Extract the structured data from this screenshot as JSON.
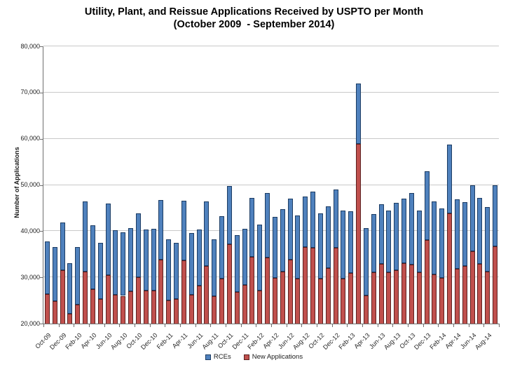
{
  "chart_data": {
    "type": "bar",
    "stacked": true,
    "title": "Utility, Plant, and Reissue Applications Received by USPTO per Month",
    "subtitle": "(October 2009  - September 2014)",
    "ylabel": "Number of Applications",
    "ylim": [
      20000,
      80000
    ],
    "ytick_step": 10000,
    "ytick_labels": [
      "20,000",
      "30,000",
      "40,000",
      "50,000",
      "60,000",
      "70,000",
      "80,000"
    ],
    "grid": true,
    "legend_position": "bottom",
    "x_label_every": 2,
    "categories": [
      "Oct-09",
      "Nov-09",
      "Dec-09",
      "Jan-10",
      "Feb-10",
      "Mar-10",
      "Apr-10",
      "May-10",
      "Jun-10",
      "Jul-10",
      "Aug-10",
      "Sep-10",
      "Oct-10",
      "Nov-10",
      "Dec-10",
      "Jan-11",
      "Feb-11",
      "Mar-11",
      "Apr-11",
      "May-11",
      "Jun-11",
      "Jul-11",
      "Aug-11",
      "Sep-11",
      "Oct-11",
      "Nov-11",
      "Dec-11",
      "Jan-12",
      "Feb-12",
      "Mar-12",
      "Apr-12",
      "May-12",
      "Jun-12",
      "Jul-12",
      "Aug-12",
      "Sep-12",
      "Oct-12",
      "Nov-12",
      "Dec-12",
      "Jan-13",
      "Feb-13",
      "Mar-13",
      "Apr-13",
      "May-13",
      "Jun-13",
      "Jul-13",
      "Aug-13",
      "Sep-13",
      "Oct-13",
      "Nov-13",
      "Dec-13",
      "Jan-14",
      "Feb-14",
      "Mar-14",
      "Apr-14",
      "May-14",
      "Jun-14",
      "Jul-14",
      "Aug-14",
      "Sep-14"
    ],
    "stack_bottom_to_top": [
      "New Applications",
      "RCEs"
    ],
    "series": [
      {
        "name": "RCEs",
        "color": "#4F81BD",
        "border_color": "#1c3c63",
        "values": [
          11400,
          11800,
          10300,
          11000,
          12500,
          15300,
          13800,
          12200,
          15400,
          13900,
          13800,
          13700,
          13900,
          13200,
          13300,
          12900,
          13300,
          12200,
          13000,
          13400,
          12200,
          13900,
          12300,
          13500,
          12600,
          12400,
          12200,
          12700,
          14200,
          13900,
          13200,
          13400,
          13200,
          13700,
          10900,
          12100,
          14200,
          13400,
          12600,
          14700,
          13300,
          13000,
          14500,
          12600,
          12900,
          13300,
          14600,
          14100,
          15500,
          13300,
          14800,
          15800,
          15000,
          14900,
          15100,
          13800,
          14300,
          14300,
          13900,
          13300
        ]
      },
      {
        "name": "New Applications",
        "color": "#C0504D",
        "border_color": "#5c201f",
        "values": [
          26400,
          24800,
          31600,
          22100,
          24100,
          31200,
          27500,
          25300,
          30500,
          26300,
          26000,
          27000,
          30000,
          27100,
          27200,
          33800,
          25000,
          25300,
          33600,
          26200,
          28200,
          32500,
          25900,
          29700,
          37200,
          26800,
          28300,
          34500,
          27200,
          34300,
          29900,
          31300,
          33800,
          29700,
          36600,
          36400,
          29700,
          32000,
          36400,
          29700,
          31000,
          58900,
          26100,
          31100,
          32900,
          31100,
          31600,
          33000,
          32800,
          31100,
          38100,
          30700,
          29900,
          43800,
          31800,
          32500,
          35700,
          32900,
          31300,
          36700
        ]
      }
    ]
  }
}
